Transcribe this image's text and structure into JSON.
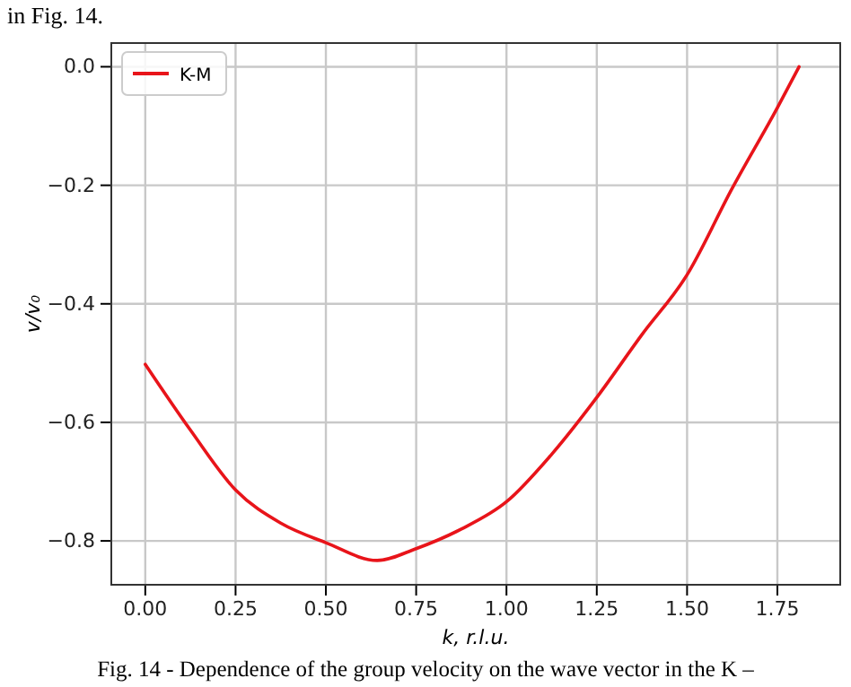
{
  "chart_data": {
    "type": "line",
    "xlabel": "k, r.l.u.",
    "ylabel": "v/v₀",
    "x": [
      0,
      0.125,
      0.25,
      0.375,
      0.5,
      0.642,
      0.75,
      0.875,
      1.0,
      1.125,
      1.25,
      1.375,
      1.5,
      1.625,
      1.75,
      1.81
    ],
    "series": [
      {
        "name": "K-M",
        "color": "#e8141a",
        "values": [
          -0.502,
          -0.613,
          -0.714,
          -0.77,
          -0.803,
          -0.833,
          -0.813,
          -0.78,
          -0.734,
          -0.654,
          -0.558,
          -0.452,
          -0.351,
          -0.205,
          -0.069,
          0.0
        ]
      }
    ],
    "xlim": [
      -0.094,
      1.924
    ],
    "ylim": [
      -0.874,
      0.04
    ],
    "xticks": [
      {
        "value": 0,
        "label": "0.00"
      },
      {
        "value": 0.25,
        "label": "0.25"
      },
      {
        "value": 0.5,
        "label": "0.50"
      },
      {
        "value": 0.75,
        "label": "0.75"
      },
      {
        "value": 1,
        "label": "1.00"
      },
      {
        "value": 1.25,
        "label": "1.25"
      },
      {
        "value": 1.5,
        "label": "1.50"
      },
      {
        "value": 1.75,
        "label": "1.75"
      }
    ],
    "yticks": [
      {
        "value": 0,
        "label": "0.0"
      },
      {
        "value": -0.2,
        "label": "−0.2"
      },
      {
        "value": -0.4,
        "label": "−0.4"
      },
      {
        "value": -0.6,
        "label": "−0.6"
      },
      {
        "value": -0.8,
        "label": "−0.8"
      }
    ],
    "grid": true,
    "legend": "top left",
    "marker": "none",
    "line_style": "solid",
    "annotations": [
      "in Fig. 14.",
      "Fig. 14 - Dependence of the group velocity on the wave vector in the K –"
    ]
  }
}
